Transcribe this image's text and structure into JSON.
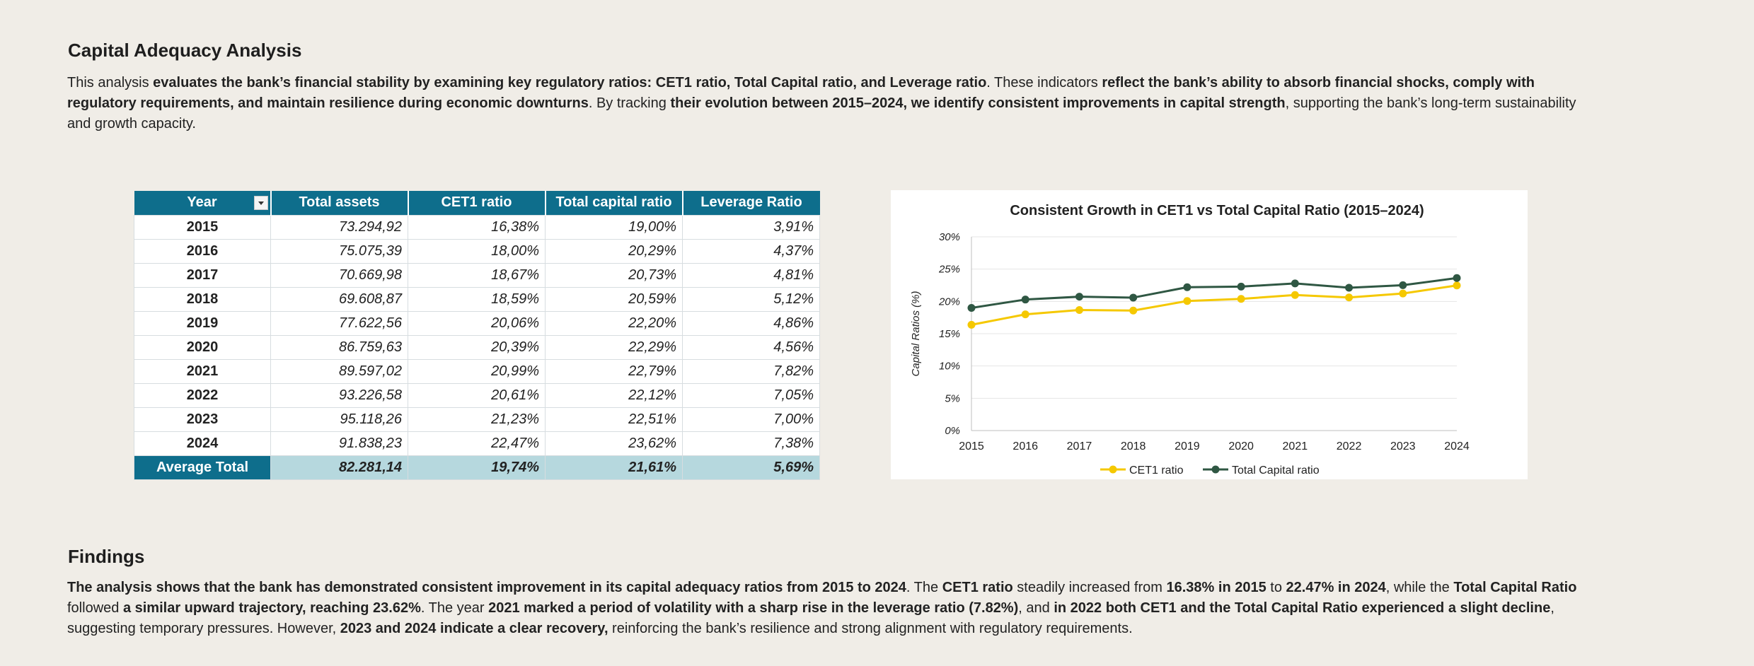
{
  "analysis": {
    "title": "Capital Adequacy Analysis",
    "para_1": "This analysis ",
    "para_2": "evaluates the bank’s financial stability by examining key regulatory ratios: CET1 ratio, Total Capital ratio, and Leverage ratio",
    "para_3": ". These indicators ",
    "para_4": "reflect the bank’s ability to absorb financial shocks, comply with regulatory requirements, and maintain resilience during economic downturns",
    "para_5": ". By tracking ",
    "para_6": "their evolution between 2015–2024, we identify consistent improvements in capital strength",
    "para_7": ", supporting the bank’s long-term sustainability and growth capacity."
  },
  "table": {
    "headers": [
      "Year",
      "Total assets",
      "CET1 ratio",
      "Total capital ratio",
      "Leverage Ratio"
    ],
    "rows": [
      [
        "2015",
        "73.294,92",
        "16,38%",
        "19,00%",
        "3,91%"
      ],
      [
        "2016",
        "75.075,39",
        "18,00%",
        "20,29%",
        "4,37%"
      ],
      [
        "2017",
        "70.669,98",
        "18,67%",
        "20,73%",
        "4,81%"
      ],
      [
        "2018",
        "69.608,87",
        "18,59%",
        "20,59%",
        "5,12%"
      ],
      [
        "2019",
        "77.622,56",
        "20,06%",
        "22,20%",
        "4,86%"
      ],
      [
        "2020",
        "86.759,63",
        "20,39%",
        "22,29%",
        "4,56%"
      ],
      [
        "2021",
        "89.597,02",
        "20,99%",
        "22,79%",
        "7,82%"
      ],
      [
        "2022",
        "93.226,58",
        "20,61%",
        "22,12%",
        "7,05%"
      ],
      [
        "2023",
        "95.118,26",
        "21,23%",
        "22,51%",
        "7,00%"
      ],
      [
        "2024",
        "91.838,23",
        "22,47%",
        "23,62%",
        "7,38%"
      ]
    ],
    "avg": [
      "Average Total",
      "82.281,14",
      "19,74%",
      "21,61%",
      "5,69%"
    ]
  },
  "chart_data": {
    "type": "line",
    "title": "Consistent Growth in CET1 vs Total Capital Ratio (2015–2024)",
    "xlabel": "",
    "ylabel": "Capital Ratios (%)",
    "categories": [
      "2015",
      "2016",
      "2017",
      "2018",
      "2019",
      "2020",
      "2021",
      "2022",
      "2023",
      "2024"
    ],
    "ylim": [
      0,
      30
    ],
    "yticks": [
      "0%",
      "5%",
      "10%",
      "15%",
      "20%",
      "25%",
      "30%"
    ],
    "grid": true,
    "legend": "bottom",
    "series": [
      {
        "name": "CET1 ratio",
        "color": "#f5c800",
        "values": [
          16.38,
          18.0,
          18.67,
          18.59,
          20.06,
          20.39,
          20.99,
          20.61,
          21.23,
          22.47
        ]
      },
      {
        "name": "Total Capital ratio",
        "color": "#2f5743",
        "values": [
          19.0,
          20.29,
          20.73,
          20.59,
          22.2,
          22.29,
          22.79,
          22.12,
          22.51,
          23.62
        ]
      }
    ]
  },
  "findings": {
    "title": "Findings",
    "f_1": "The analysis shows that the bank has demonstrated consistent improvement in its capital adequacy ratios from 2015 to 2024",
    "f_2": ". The ",
    "f_3": "CET1 ratio",
    "f_4": " steadily increased from ",
    "f_5": "16.38% in 2015",
    "f_6": " to ",
    "f_7": "22.47% in 2024",
    "f_8": ", while the ",
    "f_9": "Total Capital Ratio",
    "f_10": " followed ",
    "f_11": "a similar upward trajectory, reaching 23.62%",
    "f_12": ". The year ",
    "f_13": "2021 marked a period of volatility with a sharp rise in the leverage ratio (7.82%)",
    "f_14": ", and ",
    "f_15": "in 2022 both CET1 and the Total Capital Ratio experienced a slight decline",
    "f_16": ", suggesting temporary pressures. However, ",
    "f_17": "2023 and 2024 indicate a clear recovery,",
    "f_18": " reinforcing the bank’s resilience and strong alignment with regulatory requirements."
  },
  "colors": {
    "header_bg": "#0e6e8c",
    "avg_bg": "#b6d8de",
    "page_bg": "#f0ede7"
  }
}
